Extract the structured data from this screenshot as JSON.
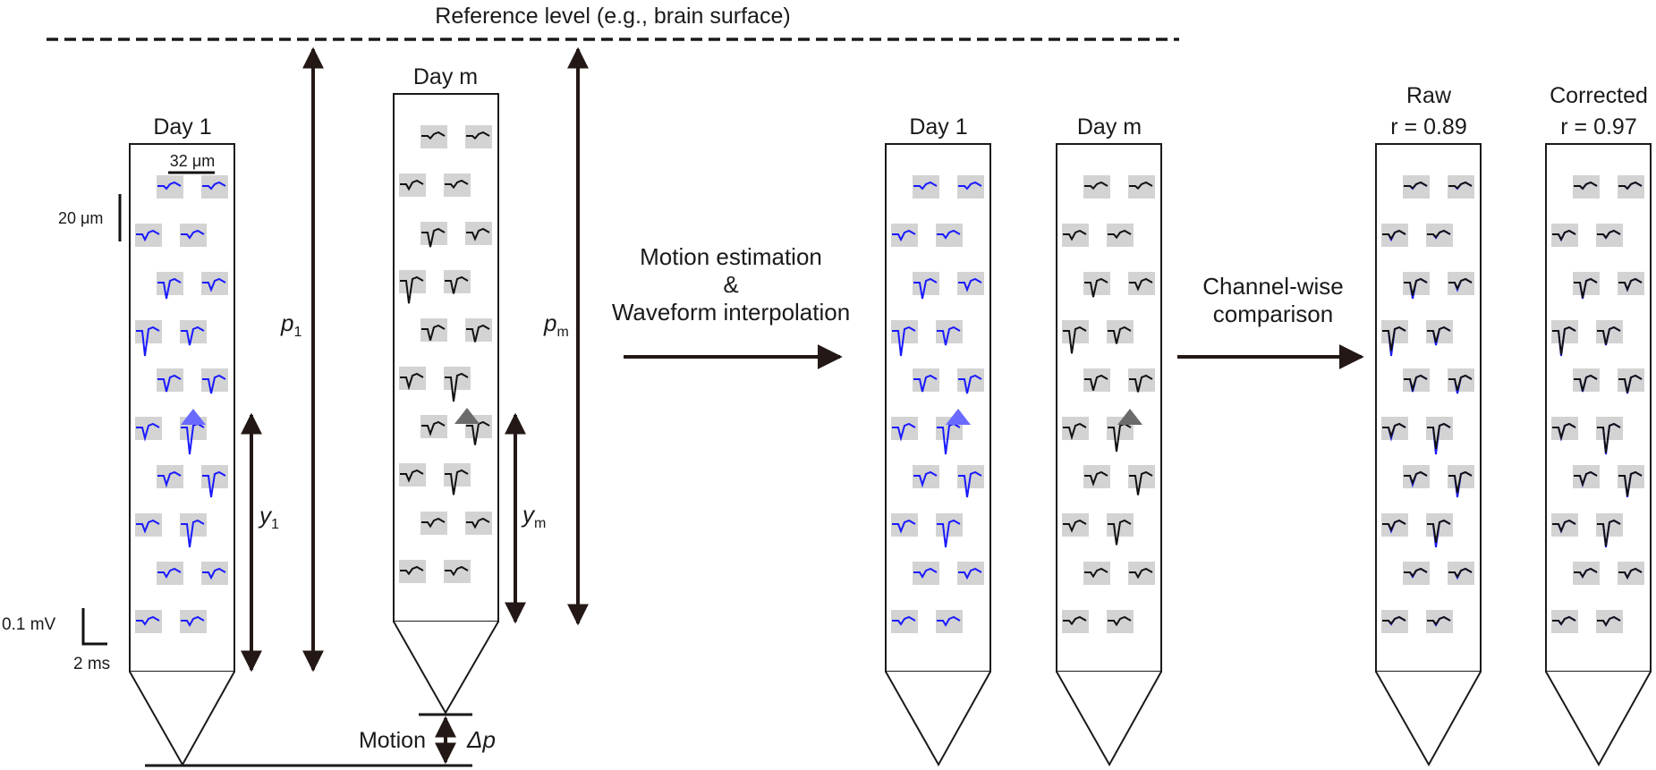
{
  "reference_label": "Reference level (e.g., brain surface)",
  "colors": {
    "day1": "#1a1aff",
    "daym": "#111111",
    "arrow": "#231815",
    "pad": "#d3d3d3",
    "marker_day1": "#6a6aff",
    "marker_daym": "#6b6b6b"
  },
  "probes": {
    "day1": "Day 1",
    "daym": "Day m",
    "day1_b": "Day 1",
    "daym_b": "Day m",
    "raw": {
      "line1": "Raw",
      "line2": "r = 0.89"
    },
    "corrected": {
      "line1": "Corrected",
      "line2": "r = 0.97"
    }
  },
  "scale": {
    "width": "32 μm",
    "height": "20 μm",
    "voltage": "0.1 mV",
    "time": "2 ms"
  },
  "symbols": {
    "p1": {
      "main": "p",
      "sub": "1"
    },
    "pm": {
      "main": "p",
      "sub": "m"
    },
    "y1": {
      "main": "y",
      "sub": "1"
    },
    "ym": {
      "main": "y",
      "sub": "m"
    },
    "delta_p": "Δp"
  },
  "motion_label": "Motion",
  "step1": {
    "line1": "Motion estimation",
    "line2": "&",
    "line3": "Waveform interpolation"
  },
  "step2": {
    "line1": "Channel-wise",
    "line2": "comparison"
  }
}
